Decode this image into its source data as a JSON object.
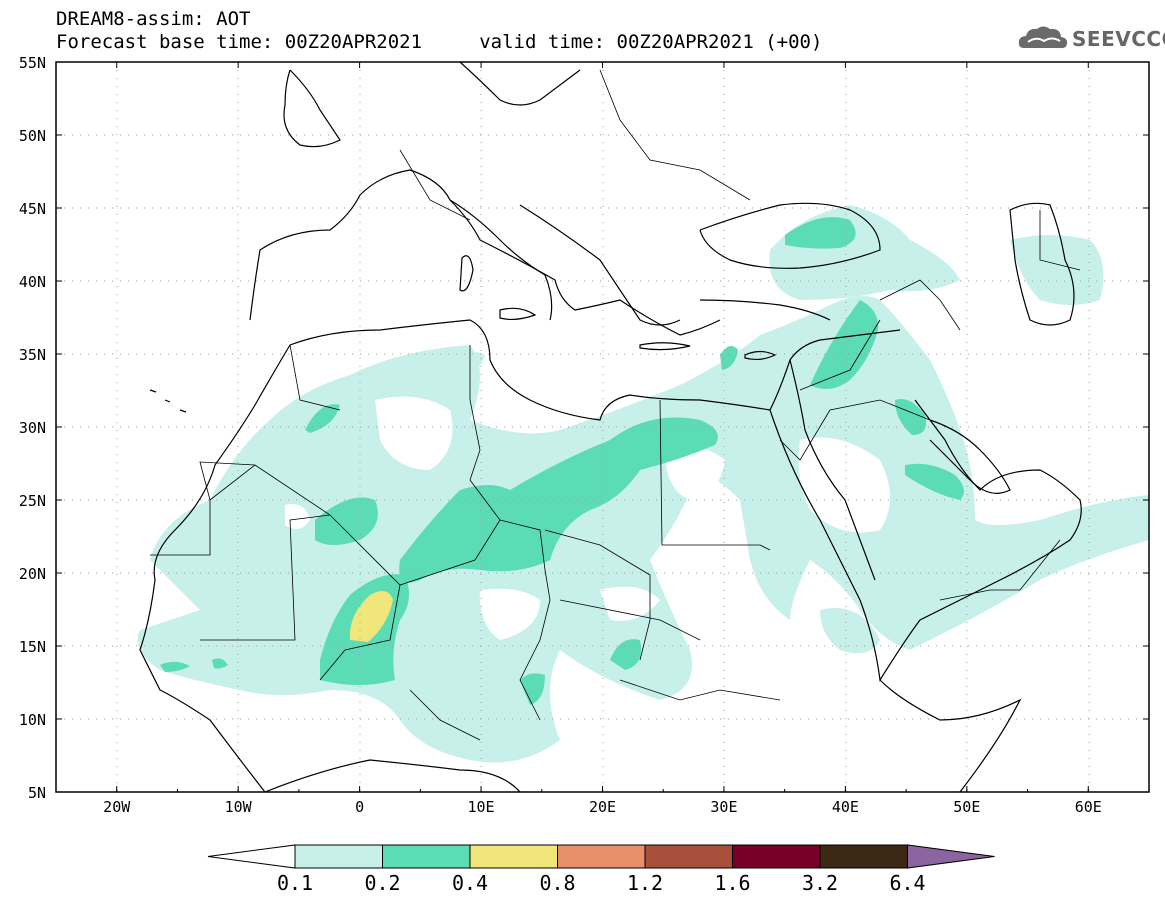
{
  "header": {
    "line1": "DREAM8-assim: AOT",
    "line2": "Forecast base time: 00Z20APR2021     valid time: 00Z20APR2021 (+00)",
    "logo_text": "SEEVCCC",
    "logo_icon": "cloud-icon"
  },
  "map": {
    "variable": "AOT",
    "lon_range": [
      -25,
      65
    ],
    "lat_range": [
      5,
      55
    ],
    "lat_ticks": [
      "55N",
      "50N",
      "45N",
      "40N",
      "35N",
      "30N",
      "25N",
      "20N",
      "15N",
      "10N",
      "5N"
    ],
    "lon_ticks": [
      "20W",
      "10W",
      "0",
      "10E",
      "20E",
      "30E",
      "40E",
      "50E",
      "60E"
    ],
    "gridlines": "dotted"
  },
  "colorbar": {
    "labels": [
      "0.1",
      "0.2",
      "0.4",
      "0.8",
      "1.2",
      "1.6",
      "3.2",
      "6.4"
    ],
    "colors": [
      "#c8f0ea",
      "#5cdcb4",
      "#f0e67a",
      "#e8906a",
      "#a8503c",
      "#780028",
      "#3c2814",
      "#8c64a0"
    ],
    "below_color": "#ffffff"
  }
}
